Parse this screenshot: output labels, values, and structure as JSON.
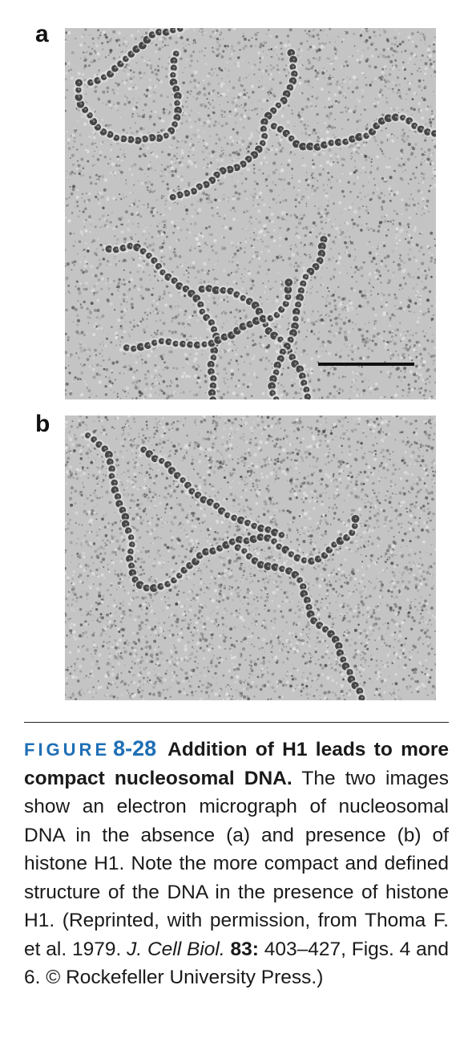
{
  "panels": [
    {
      "label": "a"
    },
    {
      "label": "b"
    }
  ],
  "caption": {
    "figure_word": "FIGURE",
    "figure_number": "8-28",
    "title": "Addition of H1 leads to more compact nucleosomal DNA.",
    "body": "The two images show an electron micrograph of nucleosomal DNA in the absence (a) and presence (b) of histone H1. Note the more compact and defined structure of the DNA in the presence of histone H1. (Reprinted, with permission, from Thoma F. et al. 1979.",
    "journal": "J. Cell Biol.",
    "volume": "83:",
    "pages": "403–427, Figs. 4 and 6. © Rockefeller University Press.)"
  }
}
